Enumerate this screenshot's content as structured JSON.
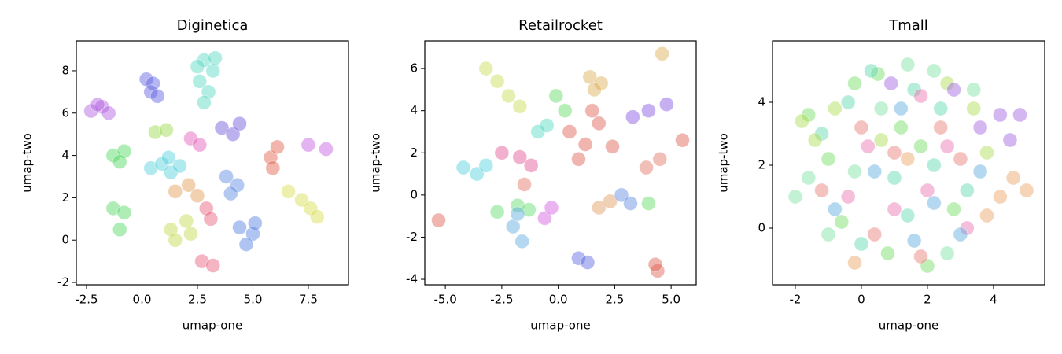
{
  "chart_data": [
    {
      "type": "scatter",
      "title": "Diginetica",
      "x_label": "umap-one",
      "y_label": "umap-two",
      "xlim": [
        -2.96,
        9.31
      ],
      "ylim": [
        -2.11,
        9.41
      ],
      "xticks": [
        -2.5,
        {
          "value": 0,
          "label": "0.0"
        },
        2.5,
        {
          "value": 5,
          "label": "5.0"
        },
        7.5
      ],
      "yticks": [
        -2,
        0,
        2,
        4,
        6,
        8
      ],
      "series": [
        {
          "color": "#b05ce0",
          "x": [
            -2.3,
            -1.8,
            -1.5,
            -2.0
          ],
          "y": [
            6.1,
            6.3,
            6.0,
            6.4
          ]
        },
        {
          "color": "#5a5ee0",
          "x": [
            0.2,
            0.5,
            0.4,
            0.7
          ],
          "y": [
            7.6,
            7.4,
            7.0,
            6.8
          ]
        },
        {
          "color": "#55d6c0",
          "x": [
            2.8,
            3.2,
            2.6,
            3.0,
            2.8,
            3.3,
            2.5
          ],
          "y": [
            8.5,
            8.0,
            7.5,
            7.0,
            6.5,
            8.6,
            8.2
          ]
        },
        {
          "color": "#4cd65c",
          "x": [
            -1.3,
            -0.8,
            -1.0,
            -1.3,
            -0.8,
            -1.0
          ],
          "y": [
            4.0,
            4.2,
            3.7,
            1.5,
            1.3,
            0.5
          ]
        },
        {
          "color": "#9ad648",
          "x": [
            0.6,
            1.1
          ],
          "y": [
            5.1,
            5.2
          ]
        },
        {
          "color": "#4fd0dc",
          "x": [
            0.4,
            0.9,
            1.3,
            1.7,
            1.2
          ],
          "y": [
            3.4,
            3.6,
            3.2,
            3.5,
            3.9
          ]
        },
        {
          "color": "#e09a50",
          "x": [
            1.5,
            2.1,
            2.5
          ],
          "y": [
            2.3,
            2.6,
            2.1
          ]
        },
        {
          "color": "#e258b8",
          "x": [
            2.2,
            2.6
          ],
          "y": [
            4.8,
            4.5
          ]
        },
        {
          "color": "#6a52d8",
          "x": [
            3.6,
            4.1,
            4.4
          ],
          "y": [
            5.3,
            5.0,
            5.5
          ]
        },
        {
          "color": "#5888e0",
          "x": [
            3.8,
            4.3,
            4.0
          ],
          "y": [
            3.0,
            2.6,
            2.2
          ]
        },
        {
          "color": "#e85878",
          "x": [
            2.9,
            3.1,
            2.7,
            3.2
          ],
          "y": [
            1.5,
            1.0,
            -1.0,
            -1.2
          ]
        },
        {
          "color": "#c2d848",
          "x": [
            1.3,
            2.0,
            1.5,
            2.2
          ],
          "y": [
            0.5,
            0.9,
            0.0,
            0.3
          ]
        },
        {
          "color": "#4f7de0",
          "x": [
            4.4,
            5.0,
            4.7,
            5.1
          ],
          "y": [
            0.6,
            0.3,
            -0.2,
            0.8
          ]
        },
        {
          "color": "#e05a48",
          "x": [
            5.8,
            6.1,
            5.9
          ],
          "y": [
            3.9,
            4.4,
            3.4
          ]
        },
        {
          "color": "#d8dc48",
          "x": [
            6.6,
            7.2,
            7.6,
            7.9
          ],
          "y": [
            2.3,
            1.9,
            1.5,
            1.1
          ]
        },
        {
          "color": "#c058e0",
          "x": [
            7.5,
            8.3
          ],
          "y": [
            4.5,
            4.3
          ]
        }
      ]
    },
    {
      "type": "scatter",
      "title": "Retailrocket",
      "x_label": "umap-one",
      "y_label": "umap-two",
      "xlim": [
        -5.91,
        6.11
      ],
      "ylim": [
        -4.26,
        7.31
      ],
      "xticks": [
        {
          "value": -5,
          "label": "-5.0"
        },
        -2.5,
        {
          "value": 0,
          "label": "0.0"
        },
        2.5,
        {
          "value": 5,
          "label": "5.0"
        }
      ],
      "yticks": [
        -4,
        -2,
        0,
        2,
        4,
        6
      ],
      "series": [
        {
          "color": "#c8dc50",
          "x": [
            -3.2,
            -2.7,
            -2.2,
            -1.7
          ],
          "y": [
            6.0,
            5.4,
            4.7,
            4.2
          ]
        },
        {
          "color": "#dcaa50",
          "x": [
            1.4,
            1.9,
            1.6,
            4.6
          ],
          "y": [
            5.6,
            5.3,
            5.0,
            6.7
          ]
        },
        {
          "color": "#e05a50",
          "x": [
            0.5,
            1.2,
            1.8,
            0.9,
            2.4,
            1.5,
            -5.3,
            5.5,
            4.4,
            4.3
          ],
          "y": [
            3.0,
            2.4,
            3.4,
            1.7,
            2.3,
            4.0,
            -1.2,
            2.6,
            -3.6,
            -3.3
          ]
        },
        {
          "color": "#5cdc60",
          "x": [
            -0.1,
            0.3,
            4.0
          ],
          "y": [
            4.7,
            4.0,
            -0.4
          ]
        },
        {
          "color": "#50d8c0",
          "x": [
            -0.9,
            -0.5
          ],
          "y": [
            3.0,
            3.3
          ]
        },
        {
          "color": "#8050e0",
          "x": [
            3.3,
            4.0,
            4.8
          ],
          "y": [
            3.7,
            4.0,
            4.3
          ]
        },
        {
          "color": "#e05090",
          "x": [
            -2.5,
            -1.7,
            -1.2
          ],
          "y": [
            2.0,
            1.8,
            1.4
          ]
        },
        {
          "color": "#4cd0dc",
          "x": [
            -4.2,
            -3.6,
            -3.2
          ],
          "y": [
            1.3,
            1.0,
            1.4
          ]
        },
        {
          "color": "#5cdc68",
          "x": [
            -2.7,
            -1.8,
            -1.3
          ],
          "y": [
            -0.8,
            -0.5,
            -0.7
          ]
        },
        {
          "color": "#5aa8e0",
          "x": [
            -2.0,
            -1.6,
            -1.8
          ],
          "y": [
            -1.5,
            -2.2,
            -0.9
          ]
        },
        {
          "color": "#d058e0",
          "x": [
            -0.6,
            -0.3
          ],
          "y": [
            -1.1,
            -0.6
          ]
        },
        {
          "color": "#5866e0",
          "x": [
            0.9,
            1.3
          ],
          "y": [
            -3.0,
            -3.2
          ]
        },
        {
          "color": "#e09a5a",
          "x": [
            1.8,
            2.3
          ],
          "y": [
            -0.6,
            -0.3
          ]
        },
        {
          "color": "#5a88e0",
          "x": [
            2.8,
            3.2
          ],
          "y": [
            0.0,
            -0.4
          ]
        },
        {
          "color": "#e07060",
          "x": [
            3.9,
            4.5,
            -1.5
          ],
          "y": [
            1.3,
            1.7,
            0.5
          ]
        }
      ]
    },
    {
      "type": "scatter",
      "title": "Tmall",
      "x_label": "umap-one",
      "y_label": "umap-two",
      "xlim": [
        -2.69,
        5.55
      ],
      "ylim": [
        -1.8,
        5.95
      ],
      "xticks": [
        -2,
        0,
        2,
        4
      ],
      "yticks": [
        0,
        2,
        4
      ],
      "series": [
        {
          "color": "#6cdc60",
          "x": [
            -1.6,
            -1.0,
            -0.2,
            0.5,
            1.2,
            2.0,
            2.8,
            -0.6,
            0.8,
            1.8
          ],
          "y": [
            3.6,
            2.2,
            4.6,
            4.9,
            3.2,
            -1.2,
            0.6,
            0.2,
            -0.8,
            2.6
          ]
        },
        {
          "color": "#5cd8b0",
          "x": [
            -1.2,
            -0.4,
            0.3,
            1.0,
            1.6,
            2.4,
            3.2,
            0.0,
            1.4,
            2.2
          ],
          "y": [
            3.0,
            4.0,
            5.0,
            1.6,
            4.4,
            3.8,
            1.2,
            -0.5,
            0.4,
            2.0
          ]
        },
        {
          "color": "#a8dc50",
          "x": [
            -1.8,
            -1.4,
            -0.8,
            2.6,
            3.4,
            3.8,
            0.6
          ],
          "y": [
            3.4,
            2.8,
            3.8,
            4.6,
            3.8,
            2.4,
            2.8
          ]
        },
        {
          "color": "#e870b0",
          "x": [
            0.2,
            1.0,
            1.8,
            2.6,
            3.2,
            -0.4,
            2.0
          ],
          "y": [
            2.6,
            0.6,
            4.2,
            2.6,
            0.0,
            1.0,
            1.2
          ]
        },
        {
          "color": "#5aa8e0",
          "x": [
            0.4,
            1.2,
            2.2,
            3.0,
            3.6,
            -0.8,
            1.6
          ],
          "y": [
            1.8,
            3.8,
            0.8,
            -0.2,
            1.8,
            0.6,
            -0.4
          ]
        },
        {
          "color": "#a060e0",
          "x": [
            2.8,
            3.6,
            4.2,
            4.5,
            0.9,
            4.8
          ],
          "y": [
            4.4,
            3.2,
            3.6,
            2.8,
            4.6,
            3.6
          ]
        },
        {
          "color": "#e8a060",
          "x": [
            4.6,
            5.0,
            4.2,
            3.8,
            -0.2,
            1.4
          ],
          "y": [
            1.6,
            1.2,
            1.0,
            0.4,
            -1.1,
            2.2
          ]
        },
        {
          "color": "#e87a70",
          "x": [
            -1.2,
            0.0,
            1.0,
            2.4,
            3.0,
            1.8,
            0.4
          ],
          "y": [
            1.2,
            3.2,
            2.4,
            3.2,
            2.2,
            -0.9,
            -0.2
          ]
        },
        {
          "color": "#78e0a0",
          "x": [
            -2.0,
            -1.6,
            -0.2,
            0.6,
            1.4,
            2.2,
            3.4,
            2.6,
            -1.0
          ],
          "y": [
            1.0,
            1.6,
            1.8,
            3.8,
            5.2,
            5.0,
            4.4,
            -0.8,
            -0.2
          ]
        }
      ]
    }
  ]
}
